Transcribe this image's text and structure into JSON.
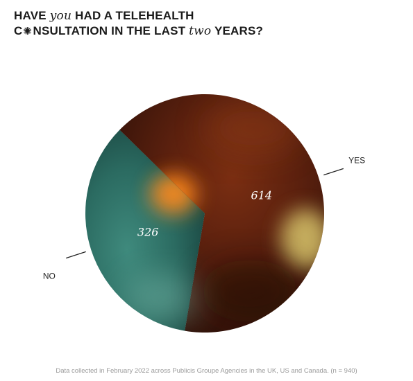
{
  "title": {
    "line1_part1": "HAVE ",
    "line1_emph": "you",
    "line1_part2": " HAD A TELEHEALTH",
    "line2_part1": "C",
    "line2_part2": "NSULTATION IN THE LAST ",
    "line2_emph": "two",
    "line2_part3": " YEARS?",
    "burst_icon": "sunburst-icon"
  },
  "chart_data": {
    "type": "pie",
    "categories": [
      "YES",
      "NO"
    ],
    "values": [
      614,
      326
    ],
    "data_labels": [
      "614",
      "326"
    ],
    "colors": {
      "YES": "#5a2410",
      "NO": "#2e6f66"
    }
  },
  "footnote": "Data collected in February 2022 across Publicis Groupe Agencies in the UK, US and Canada. (n = 940)"
}
